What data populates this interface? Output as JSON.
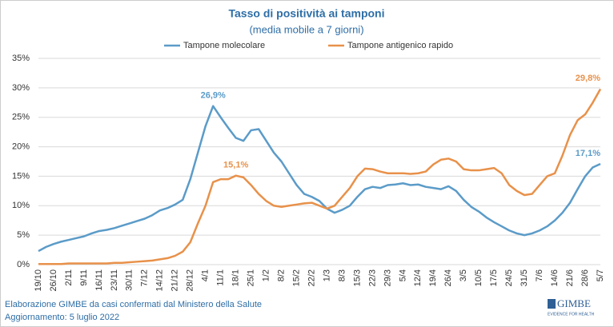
{
  "chart_data": {
    "type": "line",
    "title": "Tasso di positività ai tamponi",
    "subtitle": "(media mobile a 7 giorni)",
    "categories": [
      "19/10",
      null,
      "26/10",
      null,
      "2/11",
      null,
      "9/11",
      null,
      "16/11",
      null,
      "23/11",
      null,
      "30/11",
      null,
      "7/12",
      null,
      "14/12",
      null,
      "21/12",
      null,
      "28/12",
      null,
      "4/1",
      null,
      "11/1",
      null,
      "18/1",
      null,
      "25/1",
      null,
      "1/2",
      null,
      "8/2",
      null,
      "15/2",
      null,
      "22/2",
      null,
      "1/3",
      null,
      "8/3",
      null,
      "15/3",
      null,
      "22/3",
      null,
      "29/3",
      null,
      "5/4",
      null,
      "12/4",
      null,
      "19/4",
      null,
      "26/4",
      null,
      "3/5",
      null,
      "10/5",
      null,
      "17/5",
      null,
      "24/5",
      null,
      "31/5",
      null,
      "7/6",
      null,
      "14/6",
      null,
      "21/6",
      null,
      "28/6",
      null,
      "5/7"
    ],
    "series": [
      {
        "name": "Tampone molecolare",
        "color": "#5b9bc8",
        "values": [
          2.3,
          3.0,
          3.5,
          3.9,
          4.2,
          4.5,
          4.8,
          5.3,
          5.7,
          5.9,
          6.2,
          6.6,
          7.0,
          7.4,
          7.8,
          8.4,
          9.2,
          9.6,
          10.2,
          11.0,
          14.5,
          19.0,
          23.5,
          26.9,
          25.0,
          23.2,
          21.5,
          21.0,
          22.8,
          23.0,
          21.0,
          19.0,
          17.5,
          15.5,
          13.5,
          12.0,
          11.5,
          10.8,
          9.5,
          8.8,
          9.3,
          10.0,
          11.5,
          12.8,
          13.2,
          13.0,
          13.5,
          13.6,
          13.8,
          13.5,
          13.6,
          13.2,
          13.0,
          12.8,
          13.3,
          12.5,
          11.0,
          9.8,
          9.0,
          8.0,
          7.2,
          6.5,
          5.8,
          5.3,
          5.0,
          5.3,
          5.8,
          6.5,
          7.5,
          8.8,
          10.5,
          12.8,
          15.0,
          16.5,
          17.1
        ],
        "value_labels": [
          null,
          null,
          null,
          null,
          null,
          null,
          null,
          null,
          null,
          null,
          null,
          null,
          null,
          null,
          null,
          null,
          null,
          null,
          null,
          null,
          null,
          null,
          null,
          "26,9%",
          null,
          null,
          null,
          null,
          null,
          null,
          null,
          null,
          null,
          null,
          null,
          null,
          null,
          null,
          null,
          null,
          null,
          null,
          null,
          null,
          null,
          null,
          null,
          null,
          null,
          null,
          null,
          null,
          null,
          null,
          null,
          null,
          null,
          null,
          null,
          null,
          null,
          null,
          null,
          null,
          null,
          null,
          null,
          null,
          null,
          null,
          null,
          null,
          null,
          null,
          "17,1%"
        ]
      },
      {
        "name": "Tampone antigenico rapido",
        "color": "#e8914a",
        "values": [
          0.1,
          0.1,
          0.1,
          0.1,
          0.2,
          0.2,
          0.2,
          0.2,
          0.2,
          0.2,
          0.3,
          0.3,
          0.4,
          0.5,
          0.6,
          0.7,
          0.9,
          1.1,
          1.5,
          2.2,
          3.8,
          7.0,
          10.0,
          14.0,
          14.5,
          14.5,
          15.1,
          14.8,
          13.5,
          12.0,
          10.8,
          10.0,
          9.8,
          10.0,
          10.2,
          10.4,
          10.5,
          10.0,
          9.5,
          10.0,
          11.5,
          13.0,
          15.0,
          16.3,
          16.2,
          15.8,
          15.5,
          15.5,
          15.5,
          15.4,
          15.5,
          15.8,
          17.0,
          17.8,
          18.0,
          17.5,
          16.2,
          16.0,
          16.0,
          16.2,
          16.4,
          15.5,
          13.5,
          12.5,
          11.8,
          12.0,
          13.5,
          15.0,
          15.5,
          18.5,
          22.0,
          24.5,
          25.5,
          27.5,
          29.8
        ],
        "value_labels": [
          null,
          null,
          null,
          null,
          null,
          null,
          null,
          null,
          null,
          null,
          null,
          null,
          null,
          null,
          null,
          null,
          null,
          null,
          null,
          null,
          null,
          null,
          null,
          null,
          null,
          null,
          "15,1%",
          null,
          null,
          null,
          null,
          null,
          null,
          null,
          null,
          null,
          null,
          null,
          null,
          null,
          null,
          null,
          null,
          null,
          null,
          null,
          null,
          null,
          null,
          null,
          null,
          null,
          null,
          null,
          null,
          null,
          null,
          null,
          null,
          null,
          null,
          null,
          null,
          null,
          null,
          null,
          null,
          null,
          null,
          null,
          null,
          null,
          null,
          null,
          "29,8%"
        ]
      }
    ],
    "ylim": [
      0,
      35
    ],
    "yticks": [
      {
        "value": 0,
        "label": "0%"
      },
      {
        "value": 5,
        "label": "5%"
      },
      {
        "value": 10,
        "label": "10%"
      },
      {
        "value": 15,
        "label": "15%"
      },
      {
        "value": 20,
        "label": "20%"
      },
      {
        "value": 25,
        "label": "25%"
      },
      {
        "value": 30,
        "label": "30%"
      },
      {
        "value": 35,
        "label": "35%"
      }
    ],
    "grid": true,
    "legend": "top"
  },
  "footer": {
    "source": "Elaborazione GIMBE da casi confermati dal Ministero della Salute",
    "updated": "Aggiornamento: 5 luglio 2022",
    "logo": "GIMBE",
    "logo_tagline": "EVIDENCE FOR HEALTH"
  }
}
